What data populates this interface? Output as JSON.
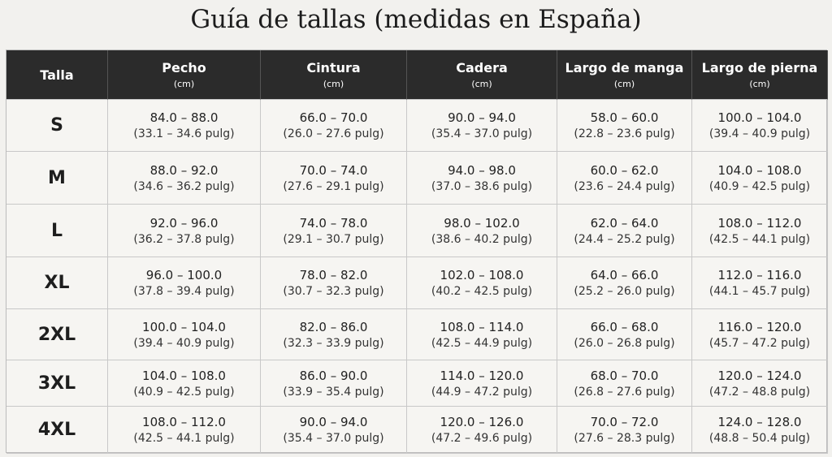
{
  "title": "Guía de tallas (medidas en España)",
  "table": {
    "columns": [
      {
        "name": "Talla"
      },
      {
        "name": "Pecho",
        "unit": "(cm)"
      },
      {
        "name": "Cintura",
        "unit": "(cm)"
      },
      {
        "name": "Cadera",
        "unit": "(cm)"
      },
      {
        "name": "Largo de manga",
        "unit": "(cm)"
      },
      {
        "name": "Largo de pierna",
        "unit": "(cm)"
      }
    ],
    "rows": [
      {
        "size": "S",
        "cells": [
          [
            "84.0 – 88.0",
            "(33.1 – 34.6 pulg)"
          ],
          [
            "66.0 – 70.0",
            "(26.0 – 27.6 pulg)"
          ],
          [
            "90.0 – 94.0",
            "(35.4 – 37.0 pulg)"
          ],
          [
            "58.0 – 60.0",
            "(22.8 – 23.6 pulg)"
          ],
          [
            "100.0 – 104.0",
            "(39.4 – 40.9 pulg)"
          ]
        ]
      },
      {
        "size": "M",
        "cells": [
          [
            "88.0 – 92.0",
            "(34.6 – 36.2 pulg)"
          ],
          [
            "70.0 – 74.0",
            "(27.6 – 29.1 pulg)"
          ],
          [
            "94.0 – 98.0",
            "(37.0 – 38.6 pulg)"
          ],
          [
            "60.0 – 62.0",
            "(23.6 – 24.4 pulg)"
          ],
          [
            "104.0 – 108.0",
            "(40.9 – 42.5 pulg)"
          ]
        ]
      },
      {
        "size": "L",
        "cells": [
          [
            "92.0 – 96.0",
            "(36.2 – 37.8 pulg)"
          ],
          [
            "74.0 – 78.0",
            "(29.1 – 30.7 pulg)"
          ],
          [
            "98.0 – 102.0",
            "(38.6 – 40.2 pulg)"
          ],
          [
            "62.0 – 64.0",
            "(24.4 – 25.2 pulg)"
          ],
          [
            "108.0 – 112.0",
            "(42.5 – 44.1 pulg)"
          ]
        ]
      },
      {
        "size": "XL",
        "cells": [
          [
            "96.0 – 100.0",
            "(37.8 – 39.4 pulg)"
          ],
          [
            "78.0 – 82.0",
            "(30.7 – 32.3 pulg)"
          ],
          [
            "102.0 – 108.0",
            "(40.2 – 42.5 pulg)"
          ],
          [
            "64.0 – 66.0",
            "(25.2 – 26.0 pulg)"
          ],
          [
            "112.0 – 116.0",
            "(44.1 – 45.7 pulg)"
          ]
        ]
      },
      {
        "size": "2XL",
        "cells": [
          [
            "100.0 – 104.0",
            "(39.4 – 40.9 pulg)"
          ],
          [
            "82.0 – 86.0",
            "(32.3 – 33.9 pulg)"
          ],
          [
            "108.0 – 114.0",
            "(42.5 – 44.9 pulg)"
          ],
          [
            "66.0 – 68.0",
            "(26.0 – 26.8 pulg)"
          ],
          [
            "116.0 – 120.0",
            "(45.7 – 47.2 pulg)"
          ]
        ]
      },
      {
        "size": "3XL",
        "cells": [
          [
            "104.0 – 108.0",
            "(40.9 – 42.5 pulg)"
          ],
          [
            "86.0 – 90.0",
            "(33.9 – 35.4 pulg)"
          ],
          [
            "114.0 – 120.0",
            "(44.9 – 47.2 pulg)"
          ],
          [
            "68.0 – 70.0",
            "(26.8 – 27.6 pulg)"
          ],
          [
            "120.0 – 124.0",
            "(47.2 – 48.8 pulg)"
          ]
        ]
      },
      {
        "size": "4XL",
        "cells": [
          [
            "108.0 – 112.0",
            "(42.5 – 44.1 pulg)"
          ],
          [
            "90.0 – 94.0",
            "(35.4 – 37.0 pulg)"
          ],
          [
            "120.0 – 126.0",
            "(47.2 – 49.6 pulg)"
          ],
          [
            "70.0 – 72.0",
            "(27.6 – 28.3 pulg)"
          ],
          [
            "124.0 – 128.0",
            "(48.8 – 50.4 pulg)"
          ]
        ]
      }
    ]
  }
}
